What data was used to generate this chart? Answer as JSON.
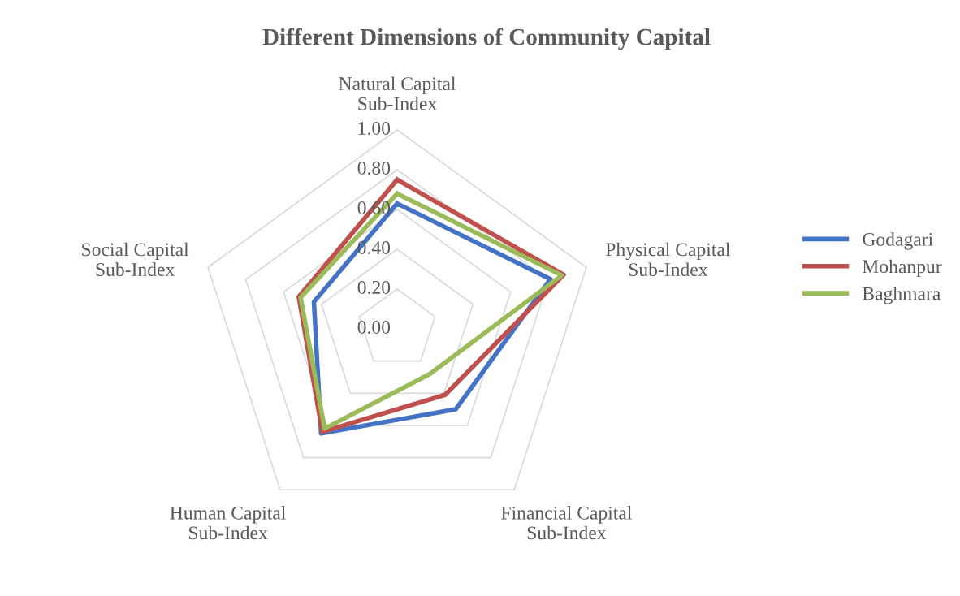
{
  "chart_data": {
    "type": "radar",
    "title": "Different Dimensions of Community Capital",
    "categories": [
      "Natural Capital\nSub-Index",
      "Physical Capital\nSub-Index",
      "Financial Capital\nSub-Index",
      "Human Capital\nSub-Index",
      "Social Capital\nSub-Index"
    ],
    "series": [
      {
        "name": "Godagari",
        "color": "#4472c4",
        "values": [
          0.63,
          0.81,
          0.5,
          0.65,
          0.44
        ]
      },
      {
        "name": "Mohanpur",
        "color": "#c0504d",
        "values": [
          0.75,
          0.88,
          0.41,
          0.64,
          0.52
        ]
      },
      {
        "name": "Baghmara",
        "color": "#9bbb59",
        "values": [
          0.68,
          0.87,
          0.28,
          0.62,
          0.51
        ]
      }
    ],
    "ylim": [
      0,
      1
    ],
    "yticks": [
      {
        "value": 0,
        "label": "0.00"
      },
      {
        "value": 0.2,
        "label": "0.20"
      },
      {
        "value": 0.4,
        "label": "0.40"
      },
      {
        "value": 0.6,
        "label": "0.60"
      },
      {
        "value": 0.8,
        "label": "0.80"
      },
      {
        "value": 1,
        "label": "1.00"
      }
    ],
    "grid": true,
    "legend": "right",
    "marker": "none",
    "line_style": "solid"
  }
}
